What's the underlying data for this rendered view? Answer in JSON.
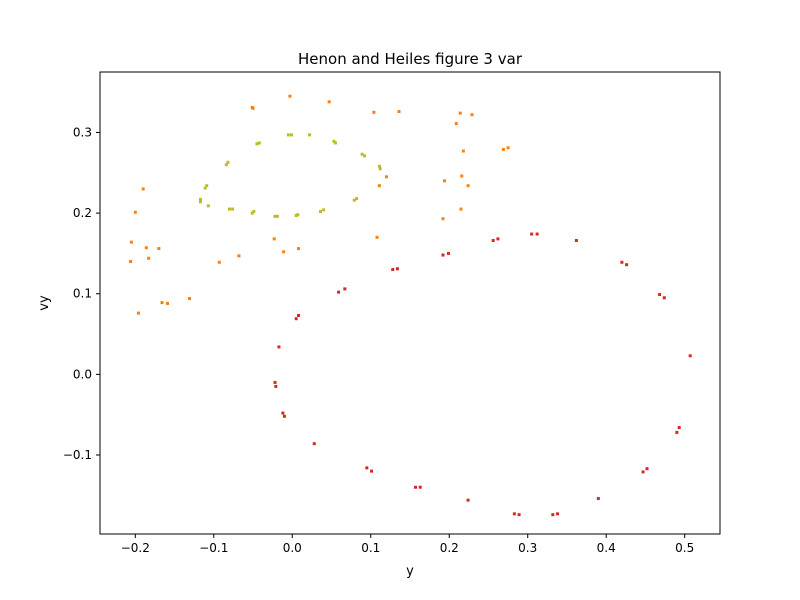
{
  "chart_data": {
    "type": "scatter",
    "title": "Henon and Heiles  figure 3 var",
    "xlabel": "y",
    "ylabel": "vy",
    "xlim": [
      -0.245,
      0.545
    ],
    "ylim": [
      -0.198,
      0.375
    ],
    "xticks": [
      -0.2,
      -0.1,
      0.0,
      0.1,
      0.2,
      0.3,
      0.4,
      0.5
    ],
    "xtick_labels": [
      "−0.2",
      "−0.1",
      "0.0",
      "0.1",
      "0.2",
      "0.3",
      "0.4",
      "0.5"
    ],
    "yticks": [
      -0.1,
      0.0,
      0.1,
      0.2,
      0.3
    ],
    "ytick_labels": [
      "−0.1",
      "0.0",
      "0.1",
      "0.2",
      "0.3"
    ],
    "grid": false,
    "series": [
      {
        "color": "#d62728",
        "points": [
          [
            -0.022,
            -0.01
          ],
          [
            -0.021,
            -0.015
          ],
          [
            -0.017,
            0.034
          ],
          [
            -0.012,
            -0.048
          ],
          [
            -0.01,
            -0.052
          ],
          [
            0.005,
            0.069
          ],
          [
            0.008,
            0.073
          ],
          [
            0.028,
            -0.086
          ],
          [
            0.059,
            0.102
          ],
          [
            0.067,
            0.106
          ],
          [
            0.095,
            -0.116
          ],
          [
            0.101,
            -0.12
          ],
          [
            0.128,
            0.13
          ],
          [
            0.134,
            0.131
          ],
          [
            0.157,
            -0.14
          ],
          [
            0.163,
            -0.14
          ],
          [
            0.192,
            0.148
          ],
          [
            0.199,
            0.15
          ],
          [
            0.224,
            -0.156
          ],
          [
            0.256,
            0.166
          ],
          [
            0.262,
            0.168
          ],
          [
            0.283,
            -0.173
          ],
          [
            0.289,
            -0.174
          ],
          [
            0.305,
            0.174
          ],
          [
            0.312,
            0.174
          ],
          [
            0.332,
            -0.174
          ],
          [
            0.338,
            -0.173
          ],
          [
            0.362,
            0.166
          ],
          [
            0.39,
            -0.154
          ],
          [
            0.42,
            0.139
          ],
          [
            0.426,
            0.136
          ],
          [
            0.447,
            -0.121
          ],
          [
            0.452,
            -0.117
          ],
          [
            0.468,
            0.099
          ],
          [
            0.474,
            0.095
          ],
          [
            0.49,
            -0.072
          ],
          [
            0.493,
            -0.066
          ],
          [
            0.507,
            0.023
          ]
        ]
      },
      {
        "color": "#ff7f0e",
        "points": [
          [
            -0.206,
            0.14
          ],
          [
            -0.205,
            0.164
          ],
          [
            -0.2,
            0.201
          ],
          [
            -0.196,
            0.076
          ],
          [
            -0.19,
            0.23
          ],
          [
            -0.186,
            0.157
          ],
          [
            -0.183,
            0.144
          ],
          [
            -0.17,
            0.156
          ],
          [
            -0.166,
            0.089
          ],
          [
            -0.159,
            0.088
          ],
          [
            -0.131,
            0.094
          ],
          [
            -0.093,
            0.139
          ],
          [
            -0.068,
            0.147
          ],
          [
            -0.051,
            0.331
          ],
          [
            -0.05,
            0.33
          ],
          [
            -0.023,
            0.168
          ],
          [
            -0.011,
            0.152
          ],
          [
            -0.003,
            0.345
          ],
          [
            0.008,
            0.156
          ],
          [
            0.047,
            0.338
          ],
          [
            0.104,
            0.325
          ],
          [
            0.108,
            0.17
          ],
          [
            0.111,
            0.234
          ],
          [
            0.12,
            0.245
          ],
          [
            0.136,
            0.326
          ],
          [
            0.192,
            0.193
          ],
          [
            0.194,
            0.24
          ],
          [
            0.209,
            0.311
          ],
          [
            0.214,
            0.324
          ],
          [
            0.215,
            0.205
          ],
          [
            0.216,
            0.246
          ],
          [
            0.218,
            0.277
          ],
          [
            0.224,
            0.234
          ],
          [
            0.229,
            0.322
          ],
          [
            0.269,
            0.279
          ],
          [
            0.275,
            0.281
          ]
        ]
      },
      {
        "color": "#bcbd22",
        "points": [
          [
            -0.117,
            0.214
          ],
          [
            -0.117,
            0.217
          ],
          [
            -0.111,
            0.231
          ],
          [
            -0.109,
            0.234
          ],
          [
            -0.107,
            0.209
          ],
          [
            -0.084,
            0.26
          ],
          [
            -0.082,
            0.263
          ],
          [
            -0.08,
            0.205
          ],
          [
            -0.076,
            0.205
          ],
          [
            -0.051,
            0.2
          ],
          [
            -0.049,
            0.202
          ],
          [
            -0.045,
            0.286
          ],
          [
            -0.042,
            0.287
          ],
          [
            -0.022,
            0.196
          ],
          [
            -0.019,
            0.196
          ],
          [
            -0.005,
            0.297
          ],
          [
            -0.001,
            0.297
          ],
          [
            0.005,
            0.197
          ],
          [
            0.007,
            0.198
          ],
          [
            0.022,
            0.297
          ],
          [
            0.036,
            0.202
          ],
          [
            0.04,
            0.204
          ],
          [
            0.053,
            0.289
          ],
          [
            0.055,
            0.287
          ],
          [
            0.079,
            0.216
          ],
          [
            0.082,
            0.218
          ],
          [
            0.089,
            0.273
          ],
          [
            0.092,
            0.271
          ],
          [
            0.111,
            0.258
          ],
          [
            0.112,
            0.255
          ]
        ]
      }
    ]
  }
}
